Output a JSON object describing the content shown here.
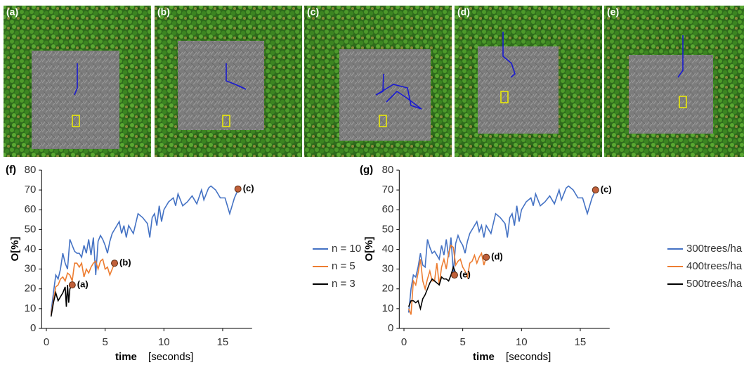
{
  "panels": [
    {
      "label": "(a)"
    },
    {
      "label": "(b)"
    },
    {
      "label": "(c)"
    },
    {
      "label": "(d)"
    },
    {
      "label": "(e)"
    }
  ],
  "chart_data": [
    {
      "type": "line",
      "label": "(f)",
      "ylabel": "O[%]",
      "xlabel": "time",
      "xlabel_unit": "[seconds]",
      "xlim": [
        -0.4,
        17.5
      ],
      "xticks": [
        0,
        5,
        10,
        15
      ],
      "ylim": [
        0,
        80
      ],
      "yticks": [
        0,
        10,
        20,
        30,
        40,
        50,
        60,
        70,
        80
      ],
      "series": [
        {
          "name": "n = 10",
          "color": "#4472c4",
          "x": [
            0.4,
            0.6,
            0.8,
            1.0,
            1.2,
            1.4,
            1.6,
            1.8,
            2.0,
            2.2,
            2.4,
            2.6,
            2.8,
            3.0,
            3.2,
            3.4,
            3.6,
            3.8,
            4.0,
            4.2,
            4.4,
            4.6,
            4.8,
            5.0,
            5.2,
            5.4,
            5.6,
            5.8,
            6.0,
            6.2,
            6.4,
            6.6,
            6.8,
            7.0,
            7.2,
            7.4,
            7.6,
            7.8,
            8.0,
            8.2,
            8.6,
            8.8,
            9.0,
            9.2,
            9.4,
            9.6,
            9.8,
            10.0,
            10.4,
            10.8,
            11.0,
            11.2,
            11.6,
            12.0,
            12.4,
            12.8,
            13.2,
            13.4,
            13.8,
            14.0,
            14.4,
            14.8,
            15.2,
            15.6,
            16.0,
            16.3
          ],
          "values": [
            8,
            18,
            27,
            25,
            30,
            38,
            33,
            30,
            45,
            42,
            39,
            38,
            38,
            36,
            42,
            38,
            45,
            37,
            46,
            27,
            44,
            47,
            45,
            42,
            38,
            44,
            48,
            50,
            52,
            54,
            48,
            52,
            46,
            52,
            50,
            48,
            53,
            58,
            57,
            56,
            53,
            46,
            56,
            58,
            52,
            62,
            54,
            60,
            64,
            66,
            62,
            68,
            62,
            64,
            67,
            63,
            70,
            65,
            71,
            72,
            70,
            66,
            66,
            58,
            66,
            70
          ]
        },
        {
          "name": "n = 5",
          "color": "#ed7d31",
          "x": [
            0.4,
            0.6,
            0.8,
            1.0,
            1.2,
            1.4,
            1.6,
            1.8,
            2.0,
            2.2,
            2.4,
            2.6,
            2.8,
            3.0,
            3.2,
            3.4,
            3.6,
            3.8,
            4.0,
            4.2,
            4.4,
            4.6,
            4.8,
            5.0,
            5.2,
            5.4,
            5.6,
            5.8
          ],
          "values": [
            7,
            14,
            21,
            22,
            25,
            26,
            24,
            28,
            27,
            24,
            33,
            33,
            31,
            33,
            26,
            30,
            28,
            31,
            33,
            34,
            30,
            34,
            35,
            30,
            31,
            27,
            30,
            33
          ]
        },
        {
          "name": "n = 3",
          "color": "#000000",
          "x": [
            0.4,
            0.6,
            0.8,
            1.0,
            1.2,
            1.4,
            1.6,
            1.7,
            1.8,
            1.9,
            2.0,
            2.2
          ],
          "values": [
            6,
            13,
            18,
            14,
            16,
            18,
            21,
            11,
            22,
            13,
            20,
            22
          ]
        }
      ],
      "annotations": [
        {
          "x": 2.2,
          "y": 22,
          "label": "(a)"
        },
        {
          "x": 5.8,
          "y": 33,
          "label": "(b)"
        },
        {
          "x": 16.3,
          "y": 70.5,
          "label": "(c)"
        }
      ]
    },
    {
      "type": "line",
      "label": "(g)",
      "ylabel": "O[%]",
      "xlabel": "time",
      "xlabel_unit": "[seconds]",
      "xlim": [
        -0.4,
        17.5
      ],
      "xticks": [
        0,
        5,
        10,
        15
      ],
      "ylim": [
        0,
        80
      ],
      "yticks": [
        0,
        10,
        20,
        30,
        40,
        50,
        60,
        70,
        80
      ],
      "series": [
        {
          "name": "300trees/ha",
          "color": "#4472c4",
          "x": [
            0.4,
            0.6,
            0.8,
            1.0,
            1.2,
            1.4,
            1.6,
            1.8,
            2.0,
            2.2,
            2.4,
            2.6,
            2.8,
            3.0,
            3.2,
            3.4,
            3.6,
            3.8,
            4.0,
            4.2,
            4.4,
            4.6,
            4.8,
            5.0,
            5.2,
            5.4,
            5.6,
            5.8,
            6.0,
            6.2,
            6.4,
            6.6,
            6.8,
            7.0,
            7.2,
            7.4,
            7.6,
            7.8,
            8.0,
            8.2,
            8.6,
            8.8,
            9.0,
            9.2,
            9.4,
            9.6,
            9.8,
            10.0,
            10.4,
            10.8,
            11.0,
            11.2,
            11.6,
            12.0,
            12.4,
            12.8,
            13.2,
            13.4,
            13.8,
            14.0,
            14.4,
            14.8,
            15.2,
            15.6,
            16.0,
            16.3
          ],
          "values": [
            8,
            20,
            27,
            26,
            31,
            38,
            32,
            31,
            45,
            41,
            38,
            39,
            37,
            35,
            42,
            37,
            45,
            36,
            46,
            28,
            43,
            47,
            44,
            42,
            38,
            44,
            48,
            50,
            52,
            54,
            49,
            52,
            46,
            52,
            50,
            48,
            53,
            58,
            57,
            56,
            53,
            46,
            56,
            58,
            52,
            62,
            54,
            60,
            64,
            66,
            62,
            68,
            62,
            64,
            67,
            63,
            70,
            65,
            71,
            72,
            70,
            66,
            66,
            58,
            66,
            70
          ]
        },
        {
          "name": "400trees/ha",
          "color": "#ed7d31",
          "x": [
            0.4,
            0.6,
            0.8,
            1.0,
            1.2,
            1.4,
            1.6,
            1.8,
            2.0,
            2.2,
            2.4,
            2.6,
            2.8,
            3.0,
            3.2,
            3.4,
            3.6,
            3.8,
            4.0,
            4.2,
            4.4,
            4.6,
            4.8,
            5.0,
            5.2,
            5.4,
            5.6,
            5.8,
            6.0,
            6.2,
            6.4,
            6.6,
            6.8,
            7.0
          ],
          "values": [
            10,
            7,
            24,
            22,
            28,
            35,
            24,
            20,
            25,
            29,
            24,
            24,
            33,
            22,
            31,
            35,
            30,
            38,
            42,
            41,
            32,
            34,
            35,
            31,
            29,
            26,
            33,
            34,
            37,
            33,
            36,
            38,
            32,
            36
          ]
        },
        {
          "name": "500trees/ha",
          "color": "#000000",
          "x": [
            0.4,
            0.6,
            0.8,
            1.0,
            1.2,
            1.4,
            1.6,
            1.8,
            2.0,
            2.2,
            2.4,
            2.6,
            2.8,
            3.0,
            3.2,
            3.4,
            3.6,
            3.8,
            4.0,
            4.2,
            4.4
          ],
          "values": [
            11,
            14,
            14,
            13,
            14,
            10,
            15,
            17,
            20,
            23,
            25,
            24,
            23,
            22,
            26,
            25,
            25,
            24,
            27,
            31,
            28
          ]
        }
      ],
      "annotations": [
        {
          "x": 4.3,
          "y": 27,
          "label": "(e)"
        },
        {
          "x": 7.0,
          "y": 36,
          "label": "(d)"
        },
        {
          "x": 16.3,
          "y": 70,
          "label": "(c)"
        }
      ]
    }
  ]
}
